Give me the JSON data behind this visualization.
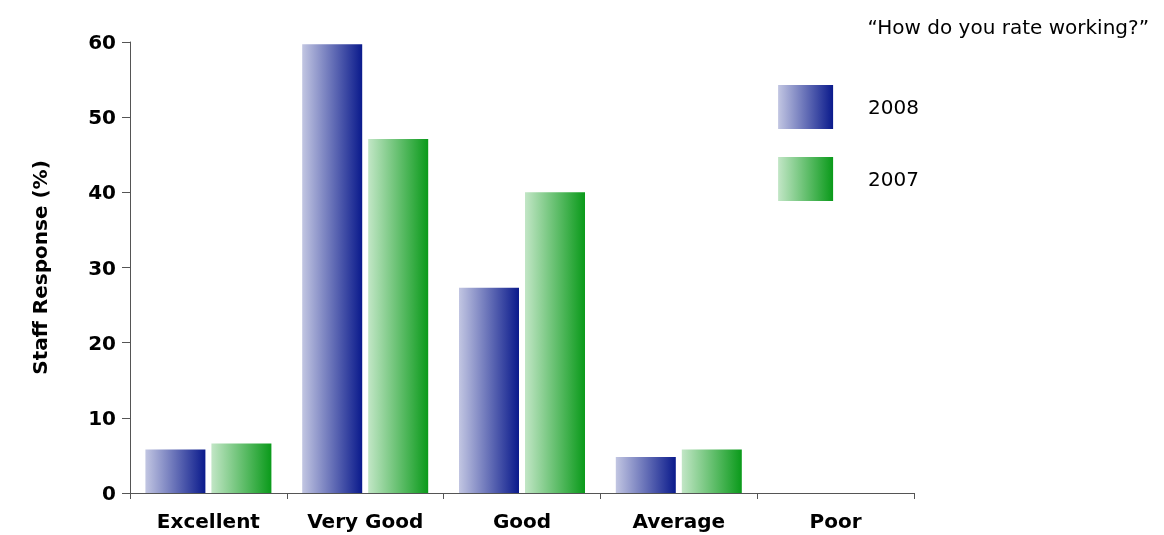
{
  "chart_data": {
    "type": "bar",
    "title": "“How do you rate working?”",
    "ylabel": "Staff Response (%)",
    "categories": [
      "Excellent",
      "Very Good",
      "Good",
      "Average",
      "Poor"
    ],
    "series": [
      {
        "name": "2008",
        "color": "#0a1a8c",
        "values": [
          5.8,
          59.7,
          27.3,
          4.8,
          0
        ]
      },
      {
        "name": "2007",
        "color": "#0a9a1a",
        "values": [
          6.6,
          47.1,
          40.0,
          5.8,
          0
        ]
      }
    ],
    "ylim": [
      0,
      60
    ],
    "yticks": [
      0,
      10,
      20,
      30,
      40,
      50,
      60
    ],
    "grid": false,
    "legend": "top right"
  }
}
